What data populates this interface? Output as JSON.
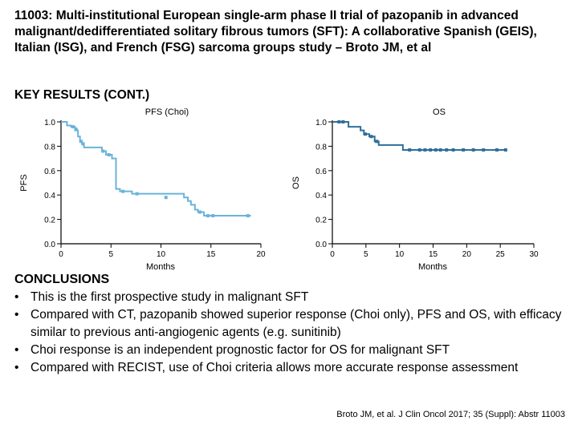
{
  "title": "11003: Multi-institutional European single-arm phase II trial of pazopanib in advanced malignant/dedifferentiated solitary fibrous tumors (SFT): A collaborative Spanish (GEIS), Italian (ISG), and French (FSG) sarcoma groups study – Broto JM, et al",
  "section_heading": "KEY RESULTS (CONT.)",
  "chart_data": [
    {
      "type": "line",
      "subtype": "kaplan-meier",
      "title": "PFS (Choi)",
      "xlabel": "Months",
      "ylabel": "PFS",
      "xlim": [
        0,
        20
      ],
      "ylim": [
        0,
        1.0
      ],
      "x_ticks": [
        0,
        5,
        10,
        15,
        20
      ],
      "x_tick_labels": [
        "0",
        "5",
        "10",
        "15",
        "20"
      ],
      "y_ticks": [
        0,
        0.2,
        0.4,
        0.6,
        0.8,
        1.0
      ],
      "y_tick_labels": [
        "0.0",
        "0.2",
        "0.4",
        "0.6",
        "0.8",
        "1.0"
      ],
      "color": "#6bb3d9",
      "steps": [
        [
          0,
          1.0
        ],
        [
          0.6,
          0.97
        ],
        [
          1.0,
          0.96
        ],
        [
          1.4,
          0.93
        ],
        [
          1.7,
          0.88
        ],
        [
          1.9,
          0.84
        ],
        [
          2.1,
          0.82
        ],
        [
          2.3,
          0.79
        ],
        [
          4.1,
          0.76
        ],
        [
          4.5,
          0.73
        ],
        [
          5.1,
          0.7
        ],
        [
          5.5,
          0.45
        ],
        [
          5.9,
          0.43
        ],
        [
          7.1,
          0.41
        ],
        [
          12.3,
          0.38
        ],
        [
          12.7,
          0.35
        ],
        [
          13.0,
          0.32
        ],
        [
          13.4,
          0.28
        ],
        [
          13.7,
          0.26
        ],
        [
          14.3,
          0.23
        ],
        [
          19.0,
          0.23
        ]
      ],
      "censored": [
        [
          1.2,
          0.96
        ],
        [
          1.5,
          0.94
        ],
        [
          2.0,
          0.84
        ],
        [
          2.2,
          0.82
        ],
        [
          4.2,
          0.76
        ],
        [
          4.8,
          0.73
        ],
        [
          6.2,
          0.43
        ],
        [
          7.6,
          0.41
        ],
        [
          10.5,
          0.38
        ],
        [
          13.9,
          0.26
        ],
        [
          14.7,
          0.23
        ],
        [
          15.2,
          0.23
        ],
        [
          18.7,
          0.23
        ]
      ]
    },
    {
      "type": "line",
      "subtype": "kaplan-meier",
      "title": "OS",
      "xlabel": "Months",
      "ylabel": "OS",
      "xlim": [
        0,
        30
      ],
      "ylim": [
        0,
        1.0
      ],
      "x_ticks": [
        0,
        5,
        10,
        15,
        20,
        25,
        30
      ],
      "x_tick_labels": [
        "0",
        "5",
        "10",
        "15",
        "20",
        "25",
        "30"
      ],
      "y_ticks": [
        0,
        0.2,
        0.4,
        0.6,
        0.8,
        1.0
      ],
      "y_tick_labels": [
        "0.0",
        "0.2",
        "0.4",
        "0.6",
        "0.8",
        "1.0"
      ],
      "color": "#2f6f99",
      "steps": [
        [
          0,
          1.0
        ],
        [
          2.0,
          1.0
        ],
        [
          2.4,
          0.96
        ],
        [
          4.2,
          0.93
        ],
        [
          4.7,
          0.9
        ],
        [
          5.5,
          0.88
        ],
        [
          6.3,
          0.84
        ],
        [
          6.9,
          0.81
        ],
        [
          10.5,
          0.77
        ],
        [
          26.0,
          0.77
        ]
      ],
      "censored": [
        [
          1.0,
          1.0
        ],
        [
          1.6,
          1.0
        ],
        [
          4.9,
          0.9
        ],
        [
          5.8,
          0.88
        ],
        [
          6.6,
          0.84
        ],
        [
          11.5,
          0.77
        ],
        [
          13.0,
          0.77
        ],
        [
          13.8,
          0.77
        ],
        [
          14.6,
          0.77
        ],
        [
          15.4,
          0.77
        ],
        [
          16.1,
          0.77
        ],
        [
          17.0,
          0.77
        ],
        [
          18.0,
          0.77
        ],
        [
          19.5,
          0.77
        ],
        [
          21.0,
          0.77
        ],
        [
          22.5,
          0.77
        ],
        [
          24.5,
          0.77
        ],
        [
          25.8,
          0.77
        ]
      ]
    }
  ],
  "conclusions": {
    "heading": "CONCLUSIONS",
    "items": [
      "This is the first prospective study in malignant SFT",
      "Compared with CT, pazopanib showed superior response (Choi only), PFS and OS, with efficacy similar to previous anti-angiogenic agents (e.g. sunitinib)",
      "Choi response is an independent prognostic factor for OS for malignant SFT",
      "Compared with RECIST, use of Choi criteria allows more accurate response assessment"
    ]
  },
  "citation": "Broto JM, et al. J Clin Oncol 2017; 35 (Suppl): Abstr 11003"
}
